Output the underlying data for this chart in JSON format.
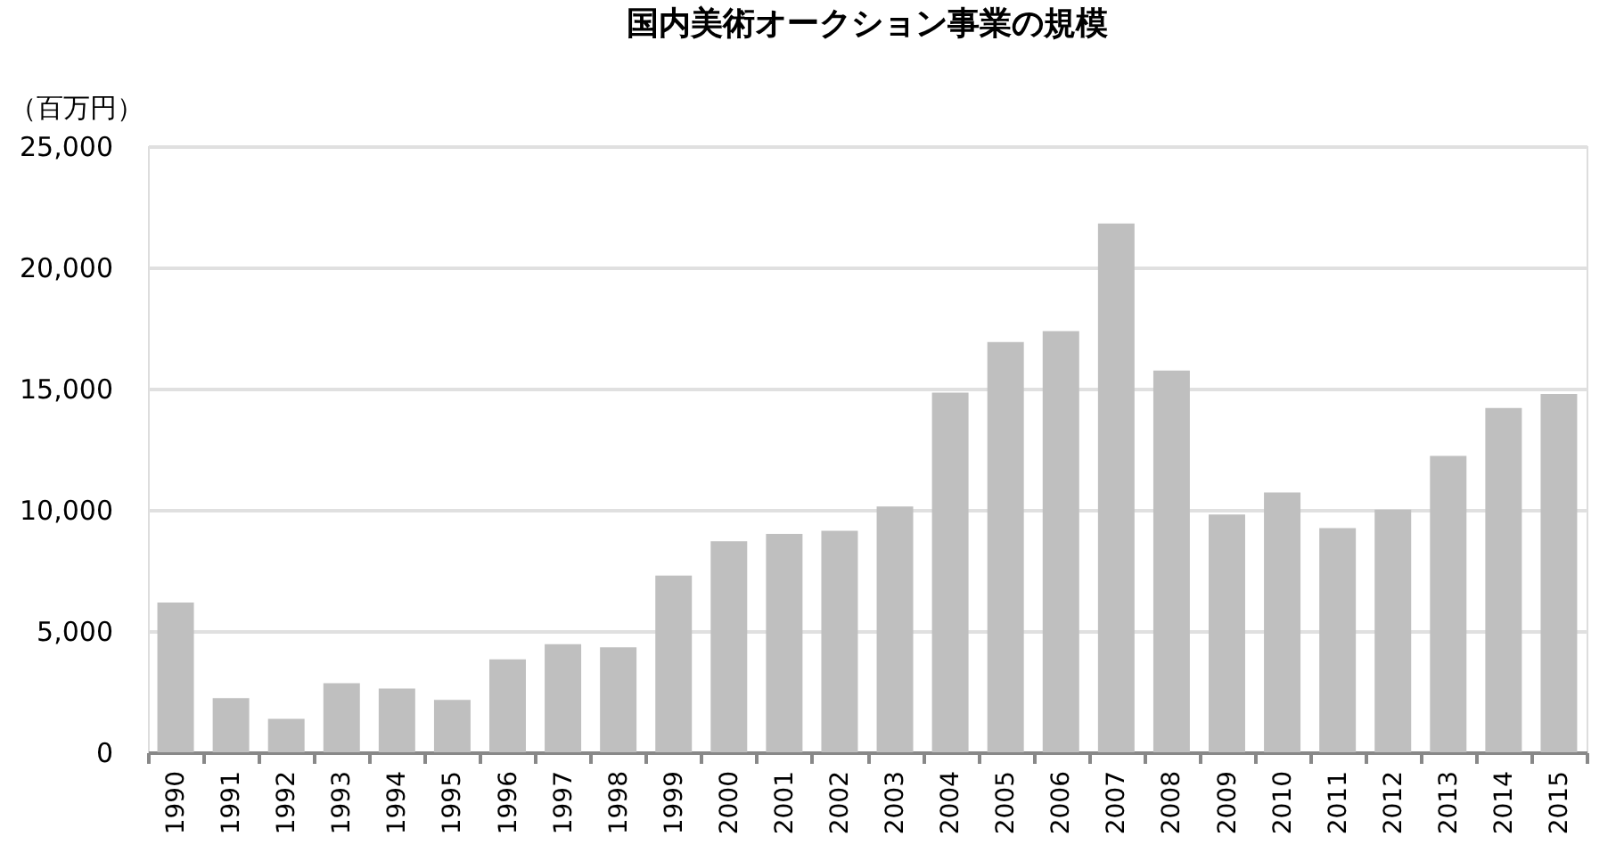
{
  "chart_data": {
    "type": "bar",
    "title": "国内美術オークション事業の規模",
    "ylabel": "（百万円）",
    "categories": [
      "1990",
      "1991",
      "1992",
      "1993",
      "1994",
      "1995",
      "1996",
      "1997",
      "1998",
      "1999",
      "2000",
      "2001",
      "2002",
      "2003",
      "2004",
      "2005",
      "2006",
      "2007",
      "2008",
      "2009",
      "2010",
      "2011",
      "2012",
      "2013",
      "2014",
      "2015"
    ],
    "values": [
      6180,
      2230,
      1380,
      2850,
      2630,
      2160,
      3830,
      4460,
      4330,
      7290,
      8700,
      9010,
      9140,
      10140,
      14830,
      16920,
      17370,
      21810,
      15740,
      9810,
      10720,
      9250,
      10010,
      12220,
      14200,
      14780
    ],
    "color": "#bfbfbf",
    "ylim": [
      0,
      25000
    ],
    "yticks": [
      0,
      {
        "value": 5000,
        "label": "5,000"
      },
      {
        "value": 10000,
        "label": "10,000"
      },
      {
        "value": 15000,
        "label": "15,000"
      },
      {
        "value": 20000,
        "label": "20,000"
      },
      {
        "value": 25000,
        "label": "25,000"
      }
    ],
    "grid": "y"
  }
}
